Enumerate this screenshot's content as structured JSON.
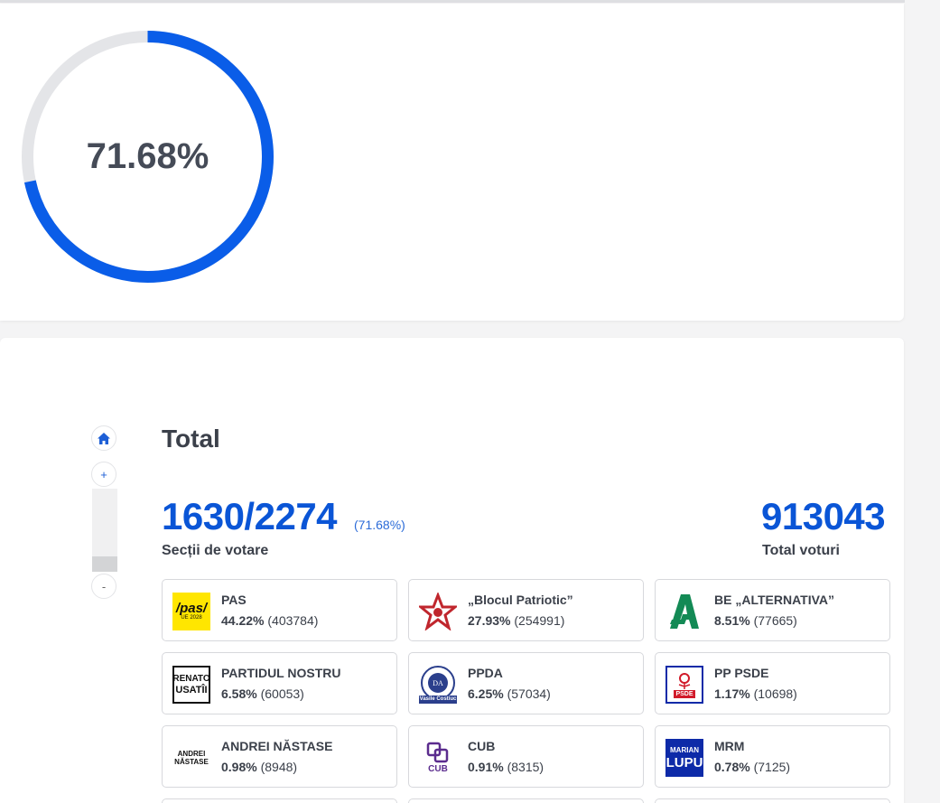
{
  "progress": {
    "percent_label": "71.68%",
    "fraction": 0.7168,
    "track_color": "#e4e5e8",
    "fill_color": "#0a5de8"
  },
  "map_controls": {
    "home_icon": "home-icon",
    "zoom_in_label": "+",
    "zoom_out_label": "-"
  },
  "summary": {
    "title": "Total",
    "sections_count": "1630/2274",
    "sections_pct": "(71.68%)",
    "sections_label": "Secții de votare",
    "total_votes": "913043",
    "total_votes_label": "Total voturi"
  },
  "parties": [
    {
      "name": "PAS",
      "pct": "44.22%",
      "votes": "(403784)",
      "logo": "pas-logo",
      "logo_text": "/pas/",
      "logo_sub": "UE 2028"
    },
    {
      "name": "„Blocul Patriotic”",
      "pct": "27.93%",
      "votes": "(254991)",
      "logo": "star-logo"
    },
    {
      "name": "BE „ALTERNATIVA”",
      "pct": "8.51%",
      "votes": "(77665)",
      "logo": "alternativa-logo"
    },
    {
      "name": "PARTIDUL NOSTRU",
      "pct": "6.58%",
      "votes": "(60053)",
      "logo": "renato-usatii-logo",
      "logo_text": "RENATO",
      "logo_sub": "USATÎI"
    },
    {
      "name": "PPDA",
      "pct": "6.25%",
      "votes": "(57034)",
      "logo": "ppda-logo",
      "logo_sub": "Vasile Costiuc"
    },
    {
      "name": "PP PSDE",
      "pct": "1.17%",
      "votes": "(10698)",
      "logo": "psde-logo",
      "logo_sub": "PSDE"
    },
    {
      "name": "ANDREI NĂSTASE",
      "pct": "0.98%",
      "votes": "(8948)",
      "logo": "nastase-logo",
      "logo_text": "ANDREI",
      "logo_sub": "NĂSTASE"
    },
    {
      "name": "CUB",
      "pct": "0.91%",
      "votes": "(8315)",
      "logo": "cub-logo",
      "logo_text": "CUB"
    },
    {
      "name": "MRM",
      "pct": "0.78%",
      "votes": "(7125)",
      "logo": "marian-lupu-logo",
      "logo_text": "MARIAN",
      "logo_sub": "LUPU"
    }
  ]
}
